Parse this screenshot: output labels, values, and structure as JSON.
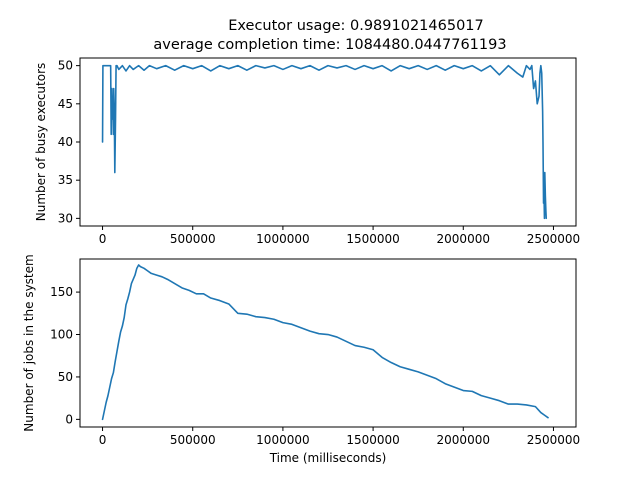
{
  "chart_data": [
    {
      "type": "line",
      "title_line1": "Executor usage: 0.9891021465017",
      "title_line2": "average completion time: 1084480.0447761193",
      "xlabel": "",
      "ylabel": "Number of busy executors",
      "xlim": [
        -125000,
        2625000
      ],
      "ylim": [
        29,
        51
      ],
      "xticks": [
        0,
        500000,
        1000000,
        1500000,
        2000000,
        2500000
      ],
      "xtick_labels": [
        "0",
        "500000",
        "1000000",
        "1500000",
        "2000000",
        "2500000"
      ],
      "yticks": [
        30,
        35,
        40,
        45,
        50
      ],
      "ytick_labels": [
        "30",
        "35",
        "40",
        "45",
        "50"
      ],
      "color": "#1f77b4",
      "grid": false,
      "x": [
        0,
        2000,
        5000,
        30000,
        40000,
        45000,
        48000,
        52000,
        55000,
        58000,
        60000,
        62000,
        65000,
        68000,
        72000,
        75000,
        80000,
        90000,
        110000,
        130000,
        150000,
        170000,
        200000,
        230000,
        260000,
        300000,
        350000,
        400000,
        450000,
        500000,
        550000,
        600000,
        650000,
        700000,
        750000,
        800000,
        850000,
        900000,
        950000,
        1000000,
        1050000,
        1100000,
        1150000,
        1200000,
        1250000,
        1300000,
        1350000,
        1400000,
        1450000,
        1500000,
        1550000,
        1600000,
        1650000,
        1700000,
        1750000,
        1800000,
        1850000,
        1900000,
        1950000,
        2000000,
        2050000,
        2100000,
        2150000,
        2200000,
        2250000,
        2300000,
        2330000,
        2350000,
        2370000,
        2380000,
        2390000,
        2400000,
        2410000,
        2420000,
        2425000,
        2430000,
        2435000,
        2440000,
        2442000,
        2445000,
        2447000,
        2450000,
        2452000,
        2455000,
        2458000,
        2460000
      ],
      "y": [
        40,
        50,
        50,
        50,
        50,
        50,
        41,
        47,
        43,
        46,
        41,
        47,
        44,
        36,
        43,
        50,
        50,
        49.5,
        50,
        49.3,
        50,
        49.5,
        50,
        49.4,
        50,
        49.6,
        50,
        49.4,
        50,
        49.6,
        50,
        49.3,
        50,
        49.6,
        50,
        49.4,
        50,
        49.7,
        50,
        49.5,
        50,
        49.6,
        50,
        49.4,
        50,
        49.7,
        50,
        49.5,
        50,
        49.6,
        50,
        49.3,
        50,
        49.6,
        50,
        49.5,
        50,
        49.4,
        50,
        49.6,
        50,
        49.3,
        50,
        48.8,
        50,
        49,
        48.5,
        50,
        49.5,
        50,
        47,
        48,
        45,
        46,
        49,
        50,
        49,
        44,
        40,
        32,
        34,
        30,
        36,
        33,
        31,
        30
      ]
    },
    {
      "type": "line",
      "xlabel": "Time (milliseconds)",
      "ylabel": "Number of jobs in the system",
      "xlim": [
        -125000,
        2625000
      ],
      "ylim": [
        -9,
        189
      ],
      "xticks": [
        0,
        500000,
        1000000,
        1500000,
        2000000,
        2500000
      ],
      "xtick_labels": [
        "0",
        "500000",
        "1000000",
        "1500000",
        "2000000",
        "2500000"
      ],
      "yticks": [
        0,
        50,
        100,
        150
      ],
      "ytick_labels": [
        "0",
        "50",
        "100",
        "150"
      ],
      "color": "#1f77b4",
      "grid": false,
      "x": [
        0,
        10000,
        20000,
        30000,
        40000,
        50000,
        60000,
        70000,
        80000,
        90000,
        100000,
        110000,
        120000,
        130000,
        140000,
        150000,
        160000,
        170000,
        180000,
        190000,
        200000,
        210000,
        230000,
        250000,
        270000,
        300000,
        330000,
        360000,
        400000,
        440000,
        480000,
        520000,
        560000,
        600000,
        650000,
        700000,
        750000,
        800000,
        850000,
        900000,
        950000,
        1000000,
        1050000,
        1100000,
        1150000,
        1200000,
        1250000,
        1300000,
        1350000,
        1400000,
        1450000,
        1500000,
        1550000,
        1600000,
        1650000,
        1700000,
        1750000,
        1800000,
        1850000,
        1900000,
        1950000,
        2000000,
        2050000,
        2100000,
        2150000,
        2200000,
        2250000,
        2300000,
        2350000,
        2400000,
        2430000,
        2450000,
        2470000
      ],
      "y": [
        0,
        10,
        20,
        28,
        38,
        48,
        55,
        68,
        80,
        92,
        103,
        110,
        120,
        135,
        142,
        150,
        160,
        165,
        170,
        178,
        182,
        180,
        178,
        175,
        172,
        170,
        168,
        165,
        160,
        155,
        152,
        148,
        148,
        143,
        140,
        136,
        125,
        124,
        121,
        120,
        118,
        114,
        112,
        108,
        104,
        101,
        100,
        97,
        92,
        87,
        85,
        82,
        73,
        67,
        62,
        59,
        56,
        52,
        48,
        42,
        38,
        34,
        33,
        28,
        25,
        22,
        18,
        18,
        17,
        15,
        8,
        5,
        2
      ]
    }
  ]
}
